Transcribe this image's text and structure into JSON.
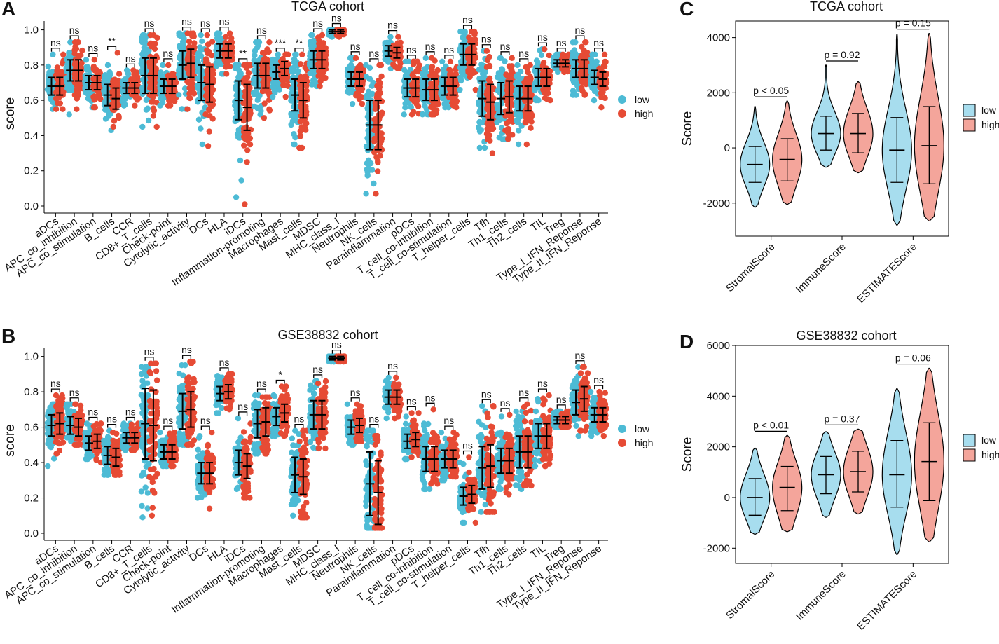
{
  "colors": {
    "low": "#4DBBD5",
    "high": "#E64B35",
    "violin_low": "#A7DDEE",
    "violin_high": "#F4A59B",
    "axis": "#000000"
  },
  "panels": {
    "A": {
      "letter": "A",
      "title": "TCGA cohort"
    },
    "B": {
      "letter": "B",
      "title": "GSE38832 cohort"
    },
    "C": {
      "letter": "C",
      "title": "TCGA cohort"
    },
    "D": {
      "letter": "D",
      "title": "GSE38832 cohort"
    }
  },
  "legend": {
    "low": "low",
    "high": "high"
  },
  "chart_data": [
    {
      "id": "A",
      "type": "scatter",
      "title": "TCGA cohort",
      "ylabel": "score",
      "ylim": [
        0,
        1.05
      ],
      "yticks": [
        "0.0",
        "0.2",
        "0.4",
        "0.6",
        "0.8",
        "1.0"
      ],
      "groups": [
        "low",
        "high"
      ],
      "categories": [
        "aDCs",
        "APC_co_inhibition",
        "APC_co_stimulation",
        "B_cells",
        "CCR",
        "CD8+_T_cells",
        "Check-point",
        "Cytolytic_activity",
        "DCs",
        "HLA",
        "iDCs",
        "Inflammation-promoting",
        "Macrophages",
        "Mast_cells",
        "MDSC",
        "MHC_class_I",
        "Neutrophils",
        "NK_cells",
        "Parainflammation",
        "pDCs",
        "T_cell_co-inhibition",
        "T_cell_co-stimulation",
        "T_helper_cells",
        "Tfh",
        "Th1_cells",
        "Th2_cells",
        "TIL",
        "Treg",
        "Type_I_IFN_Reponse",
        "Type_II_IFN_Reponse"
      ],
      "significance": [
        "ns",
        "ns",
        "ns",
        "**",
        "ns",
        "ns",
        "ns",
        "ns",
        "ns",
        "ns",
        "**",
        "ns",
        "***",
        "**",
        "ns",
        "ns",
        "ns",
        "ns",
        "ns",
        "ns",
        "ns",
        "ns",
        "ns",
        "ns",
        "ns",
        "ns",
        "ns",
        "ns",
        "ns",
        "ns"
      ],
      "series": [
        {
          "name": "low",
          "mean": [
            0.68,
            0.77,
            0.7,
            0.63,
            0.67,
            0.74,
            0.68,
            0.8,
            0.7,
            0.88,
            0.6,
            0.74,
            0.76,
            0.63,
            0.83,
            0.99,
            0.72,
            0.46,
            0.88,
            0.67,
            0.66,
            0.68,
            0.86,
            0.61,
            0.61,
            0.61,
            0.73,
            0.81,
            0.78,
            0.73
          ],
          "sd": [
            0.05,
            0.06,
            0.04,
            0.06,
            0.03,
            0.1,
            0.04,
            0.08,
            0.1,
            0.04,
            0.11,
            0.07,
            0.04,
            0.09,
            0.05,
            0.01,
            0.04,
            0.14,
            0.03,
            0.05,
            0.06,
            0.05,
            0.06,
            0.1,
            0.09,
            0.07,
            0.05,
            0.02,
            0.05,
            0.04
          ],
          "min": [
            0.55,
            0.52,
            0.56,
            0.43,
            0.57,
            0.45,
            0.57,
            0.55,
            0.35,
            0.75,
            0.05,
            0.52,
            0.62,
            0.35,
            0.68,
            0.96,
            0.58,
            0.07,
            0.78,
            0.52,
            0.52,
            0.56,
            0.66,
            0.33,
            0.38,
            0.35,
            0.6,
            0.76,
            0.63,
            0.6
          ],
          "max": [
            0.86,
            0.93,
            0.83,
            0.8,
            0.77,
            0.97,
            0.8,
            0.98,
            0.97,
            0.98,
            0.8,
            0.93,
            0.86,
            0.86,
            0.97,
            1.0,
            0.84,
            0.8,
            0.96,
            0.82,
            0.84,
            0.82,
            0.99,
            0.88,
            0.84,
            0.8,
            0.89,
            0.86,
            0.93,
            0.86
          ]
        },
        {
          "name": "high",
          "mean": [
            0.68,
            0.77,
            0.7,
            0.61,
            0.67,
            0.74,
            0.68,
            0.81,
            0.69,
            0.88,
            0.56,
            0.74,
            0.78,
            0.6,
            0.83,
            0.99,
            0.72,
            0.46,
            0.87,
            0.67,
            0.66,
            0.68,
            0.86,
            0.59,
            0.62,
            0.61,
            0.73,
            0.81,
            0.78,
            0.72
          ],
          "sd": [
            0.05,
            0.06,
            0.04,
            0.06,
            0.03,
            0.1,
            0.04,
            0.08,
            0.1,
            0.04,
            0.13,
            0.07,
            0.04,
            0.1,
            0.05,
            0.01,
            0.04,
            0.14,
            0.03,
            0.05,
            0.06,
            0.05,
            0.06,
            0.1,
            0.09,
            0.07,
            0.05,
            0.02,
            0.05,
            0.04
          ],
          "min": [
            0.55,
            0.55,
            0.56,
            0.45,
            0.57,
            0.45,
            0.57,
            0.55,
            0.34,
            0.75,
            0.01,
            0.5,
            0.62,
            0.33,
            0.68,
            0.96,
            0.58,
            0.07,
            0.78,
            0.52,
            0.52,
            0.56,
            0.66,
            0.3,
            0.38,
            0.35,
            0.6,
            0.76,
            0.63,
            0.56
          ],
          "max": [
            0.86,
            0.93,
            0.83,
            0.87,
            0.77,
            0.97,
            0.8,
            0.98,
            0.97,
            0.98,
            0.8,
            0.93,
            0.86,
            0.86,
            0.97,
            1.0,
            0.84,
            0.8,
            0.96,
            0.82,
            0.84,
            0.82,
            0.99,
            0.88,
            0.84,
            0.8,
            0.89,
            0.86,
            0.93,
            0.86
          ]
        }
      ]
    },
    {
      "id": "B",
      "type": "scatter",
      "title": "GSE38832 cohort",
      "ylabel": "score",
      "ylim": [
        0,
        1.05
      ],
      "yticks": [
        "0.0",
        "0.2",
        "0.4",
        "0.6",
        "0.8",
        "1.0"
      ],
      "groups": [
        "low",
        "high"
      ],
      "categories": [
        "aDCs",
        "APC_co_inhibition",
        "APC_co_stimulation",
        "B_cells",
        "CCR",
        "CD8+_T_cells",
        "Check-point",
        "Cytolytic_activity",
        "DCs",
        "HLA",
        "iDCs",
        "Inflammation-promoting",
        "Macrophages",
        "Mast_cells",
        "MDSC",
        "MHC_class_I",
        "Neutrophils",
        "NK_cells",
        "Parainflammation",
        "pDCs",
        "T_cell_co-inhibition",
        "T_cell_co-stimulation",
        "T_helper_cells",
        "Tfh",
        "Th1_cells",
        "Th2_cells",
        "TIL",
        "Treg",
        "Type_I_IFN_Reponse",
        "Type_II_IFN_Reponse"
      ],
      "significance": [
        "ns",
        "ns",
        "ns",
        "ns",
        "ns",
        "ns",
        "ns",
        "ns",
        "ns",
        "ns",
        "ns",
        "ns",
        "*",
        "ns",
        "ns",
        "ns",
        "ns",
        "ns",
        "ns",
        "ns",
        "ns",
        "ns",
        "ns",
        "ns",
        "ns",
        "ns",
        "ns",
        "ns",
        "ns",
        "ns"
      ],
      "series": [
        {
          "name": "low",
          "mean": [
            0.61,
            0.61,
            0.51,
            0.44,
            0.54,
            0.62,
            0.46,
            0.69,
            0.34,
            0.79,
            0.4,
            0.62,
            0.66,
            0.33,
            0.67,
            0.99,
            0.6,
            0.28,
            0.77,
            0.52,
            0.42,
            0.42,
            0.21,
            0.37,
            0.41,
            0.46,
            0.55,
            0.64,
            0.74,
            0.67
          ],
          "sd": [
            0.06,
            0.05,
            0.04,
            0.05,
            0.03,
            0.2,
            0.04,
            0.1,
            0.06,
            0.04,
            0.07,
            0.08,
            0.05,
            0.1,
            0.08,
            0.01,
            0.04,
            0.18,
            0.04,
            0.04,
            0.07,
            0.05,
            0.05,
            0.12,
            0.07,
            0.09,
            0.07,
            0.02,
            0.07,
            0.04
          ],
          "min": [
            0.38,
            0.52,
            0.42,
            0.33,
            0.47,
            0.09,
            0.38,
            0.5,
            0.2,
            0.68,
            0.25,
            0.45,
            0.55,
            0.1,
            0.48,
            0.97,
            0.5,
            0.03,
            0.65,
            0.42,
            0.25,
            0.3,
            0.06,
            0.12,
            0.25,
            0.25,
            0.38,
            0.6,
            0.55,
            0.55
          ],
          "max": [
            0.73,
            0.73,
            0.62,
            0.58,
            0.62,
            0.94,
            0.57,
            0.95,
            0.55,
            0.89,
            0.65,
            0.78,
            0.78,
            0.58,
            0.86,
            1.0,
            0.73,
            0.58,
            0.88,
            0.66,
            0.62,
            0.57,
            0.4,
            0.72,
            0.66,
            0.69,
            0.76,
            0.69,
            0.94,
            0.8
          ]
        },
        {
          "name": "high",
          "mean": [
            0.62,
            0.6,
            0.52,
            0.43,
            0.54,
            0.61,
            0.46,
            0.7,
            0.34,
            0.8,
            0.38,
            0.63,
            0.68,
            0.32,
            0.67,
            0.99,
            0.61,
            0.23,
            0.77,
            0.53,
            0.42,
            0.42,
            0.22,
            0.38,
            0.41,
            0.46,
            0.55,
            0.64,
            0.76,
            0.67
          ],
          "sd": [
            0.06,
            0.05,
            0.04,
            0.05,
            0.03,
            0.2,
            0.04,
            0.1,
            0.06,
            0.04,
            0.07,
            0.08,
            0.05,
            0.1,
            0.08,
            0.01,
            0.04,
            0.18,
            0.04,
            0.04,
            0.07,
            0.05,
            0.05,
            0.12,
            0.07,
            0.09,
            0.07,
            0.02,
            0.07,
            0.04
          ],
          "min": [
            0.45,
            0.5,
            0.4,
            0.33,
            0.47,
            0.1,
            0.38,
            0.5,
            0.14,
            0.7,
            0.2,
            0.45,
            0.55,
            0.09,
            0.48,
            0.97,
            0.52,
            0.03,
            0.65,
            0.43,
            0.28,
            0.32,
            0.06,
            0.12,
            0.22,
            0.27,
            0.38,
            0.6,
            0.58,
            0.55
          ],
          "max": [
            0.78,
            0.73,
            0.62,
            0.57,
            0.62,
            0.96,
            0.57,
            0.97,
            0.57,
            0.9,
            0.62,
            0.77,
            0.83,
            0.58,
            0.86,
            1.0,
            0.73,
            0.55,
            0.88,
            0.68,
            0.7,
            0.57,
            0.43,
            0.72,
            0.67,
            0.73,
            0.78,
            0.69,
            0.94,
            0.8
          ]
        }
      ]
    },
    {
      "id": "C",
      "type": "violin",
      "title": "TCGA cohort",
      "ylabel": "Score",
      "ylim": [
        -3200,
        4600
      ],
      "yticks": [
        "-2000",
        "0",
        "2000",
        "4000"
      ],
      "categories": [
        "StromalScore",
        "ImmuneScore",
        "ESTIMATEScore"
      ],
      "pvalues": [
        "p < 0.05",
        "p = 0.92",
        "p = 0.15"
      ],
      "series": [
        {
          "name": "low",
          "median": [
            -600,
            520,
            -80
          ],
          "q_low": [
            -1250,
            -80,
            -1250
          ],
          "q_high": [
            50,
            1150,
            1100
          ],
          "min": [
            -2150,
            -700,
            -2800
          ],
          "max": [
            1500,
            3000,
            4100
          ]
        },
        {
          "name": "high",
          "median": [
            -420,
            520,
            80
          ],
          "q_low": [
            -1200,
            -180,
            -1300
          ],
          "q_high": [
            330,
            1250,
            1500
          ],
          "min": [
            -2050,
            -900,
            -2650
          ],
          "max": [
            1700,
            2400,
            4150
          ]
        }
      ]
    },
    {
      "id": "D",
      "type": "violin",
      "title": "GSE38832 cohort",
      "ylabel": "Score",
      "ylim": [
        -2600,
        6000
      ],
      "yticks": [
        "-2000",
        "0",
        "2000",
        "4000",
        "6000"
      ],
      "categories": [
        "StromalScore",
        "ImmuneScore",
        "ESTIMATEScore"
      ],
      "pvalues": [
        "p < 0.01",
        "p = 0.37",
        "p = 0.06"
      ],
      "series": [
        {
          "name": "low",
          "median": [
            0,
            900,
            900
          ],
          "q_low": [
            -700,
            150,
            -380
          ],
          "q_high": [
            750,
            1620,
            2250
          ],
          "min": [
            -1450,
            -780,
            -2250
          ],
          "max": [
            1950,
            2600,
            4300
          ]
        },
        {
          "name": "high",
          "median": [
            400,
            1020,
            1420
          ],
          "q_low": [
            -520,
            220,
            -120
          ],
          "q_high": [
            1230,
            1830,
            2950
          ],
          "min": [
            -1350,
            -650,
            -1750
          ],
          "max": [
            2450,
            2700,
            5100
          ]
        }
      ]
    }
  ]
}
